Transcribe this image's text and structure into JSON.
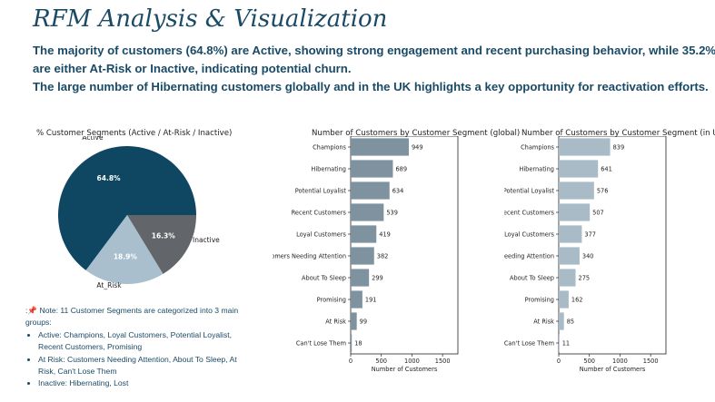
{
  "page": {
    "title": "RFM Analysis & Visualization",
    "summary_lines": [
      "The majority of customers (64.8%) are Active, showing strong engagement and recent purchasing behavior, while 35.2%",
      "are either At-Risk or Inactive, indicating potential churn.",
      "The large number of Hibernating customers globally and in the UK highlights a key opportunity for reactivation efforts."
    ]
  },
  "note": {
    "prefix": ":",
    "pin_icon": "📌",
    "intro": " Note: 11 Customer Segments are categorized into 3 main groups:",
    "groups": [
      "Active: Champions, Loyal Customers, Potential Loyalist, Recent Customers, Promising",
      "At Risk: Customers Needing Attention, About To Sleep, At Risk, Can't Lose Them",
      "Inactive: Hibernating, Lost"
    ]
  },
  "chart_data": [
    {
      "type": "pie",
      "title": "% Customer Segments (Active / At-Risk / Inactive)",
      "labels": [
        "Active",
        "At_Risk",
        "Inactive"
      ],
      "values": [
        64.8,
        18.9,
        16.3
      ],
      "value_labels": [
        "64.8%",
        "18.9%",
        "16.3%"
      ],
      "colors": [
        "#0f4662",
        "#a9bfcd",
        "#62666a"
      ]
    },
    {
      "type": "bar",
      "orientation": "horizontal",
      "title": "Number of Customers by Customer Segment (global)",
      "categories": [
        "Champions",
        "Hibernating",
        "Potential Loyalist",
        "Recent Customers",
        "Loyal Customers",
        "Customers Needing Attention",
        "About To Sleep",
        "Promising",
        "At Risk",
        "Can't Lose Them"
      ],
      "values": [
        949,
        689,
        634,
        539,
        419,
        382,
        299,
        191,
        99,
        18
      ],
      "xlabel": "Number of Customers",
      "xlim": [
        0,
        1750
      ],
      "xticks": [
        0,
        500,
        1000,
        1500
      ],
      "color": "#7e939f"
    },
    {
      "type": "bar",
      "orientation": "horizontal",
      "title": "Number of Customers by Customer Segment (in UK)",
      "categories": [
        "Champions",
        "Hibernating",
        "Potential Loyalist",
        "Recent Customers",
        "Loyal Customers",
        "Customers Needing Attention",
        "About To Sleep",
        "Promising",
        "At Risk",
        "Can't Lose Them"
      ],
      "values": [
        839,
        641,
        576,
        507,
        377,
        340,
        275,
        162,
        85,
        11
      ],
      "xlabel": "Number of Customers",
      "xlim": [
        0,
        1750
      ],
      "xticks": [
        0,
        500,
        1000,
        1500
      ],
      "color": "#a9bbc7"
    }
  ]
}
